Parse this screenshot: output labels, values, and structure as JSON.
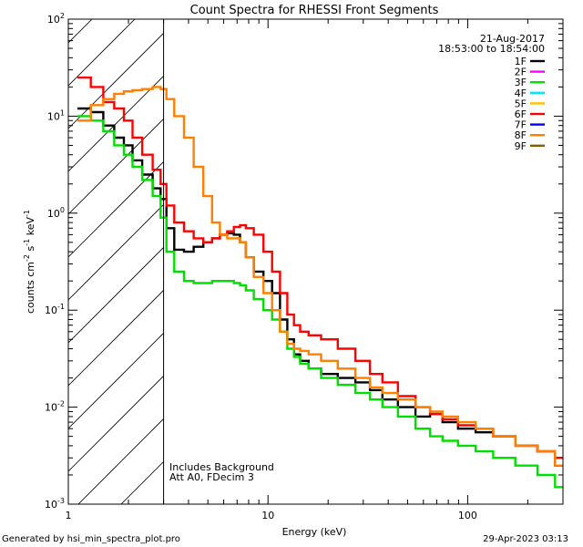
{
  "chart_data": {
    "type": "line",
    "title": "Count Spectra for RHESSI Front Segments",
    "xlabel": "Energy (keV)",
    "ylabel": {
      "base": "counts cm",
      "exp1": "-2",
      "mid1": " s",
      "exp2": "-1",
      "mid2": " keV",
      "exp3": "-1"
    },
    "x_scale": "log",
    "y_scale": "log",
    "xlim": [
      1,
      300
    ],
    "ylim": [
      0.001,
      100
    ],
    "x_ticks": [
      {
        "value": 1,
        "label": "1"
      },
      {
        "value": 10,
        "label": "10"
      },
      {
        "value": 100,
        "label": "100"
      }
    ],
    "y_ticks": [
      {
        "value": 0.001,
        "base": "10",
        "exp": "-3"
      },
      {
        "value": 0.01,
        "base": "10",
        "exp": "-2"
      },
      {
        "value": 0.1,
        "base": "10",
        "exp": "-1"
      },
      {
        "value": 1,
        "base": "10",
        "exp": "0"
      },
      {
        "value": 10,
        "base": "10",
        "exp": "1"
      },
      {
        "value": 100,
        "base": "10",
        "exp": "2"
      }
    ],
    "date_label": "21-Aug-2017",
    "time_label": "18:53:00 to 18:54:00",
    "hatched_region_end_kev": 3,
    "annotations": [
      "Includes Background",
      "Att A0, FDecim 3"
    ],
    "legend": [
      {
        "name": "1F",
        "color": "#000000"
      },
      {
        "name": "2F",
        "color": "#ff00ff"
      },
      {
        "name": "3F",
        "color": "#00e000"
      },
      {
        "name": "4F",
        "color": "#00e8ff"
      },
      {
        "name": "5F",
        "color": "#ffc000"
      },
      {
        "name": "6F",
        "color": "#ff0000"
      },
      {
        "name": "7F",
        "color": "#0000ff"
      },
      {
        "name": "8F",
        "color": "#ff8000"
      },
      {
        "name": "9F",
        "color": "#806000"
      }
    ],
    "series": [
      {
        "name": "1F",
        "color": "#000000",
        "x": [
          1.2,
          1.4,
          1.6,
          1.8,
          2.0,
          2.2,
          2.5,
          2.8,
          3.0,
          3.2,
          3.6,
          4.0,
          4.5,
          5.0,
          5.5,
          6.0,
          6.5,
          7.0,
          7.5,
          8.0,
          9.0,
          10,
          11,
          12,
          13,
          14,
          15,
          17,
          20,
          25,
          30,
          35,
          40,
          50,
          60,
          70,
          80,
          100,
          120,
          150,
          200,
          250,
          300
        ],
        "y": [
          12,
          11,
          8,
          6,
          5,
          3.5,
          2.5,
          1.8,
          1.4,
          0.7,
          0.42,
          0.4,
          0.45,
          0.5,
          0.55,
          0.6,
          0.62,
          0.6,
          0.5,
          0.35,
          0.25,
          0.2,
          0.15,
          0.08,
          0.05,
          0.035,
          0.03,
          0.025,
          0.022,
          0.02,
          0.018,
          0.015,
          0.012,
          0.01,
          0.008,
          0.0085,
          0.007,
          0.006,
          0.0055,
          0.005,
          0.004,
          0.0035,
          0.0025
        ]
      },
      {
        "name": "3F",
        "color": "#00e000",
        "x": [
          1.2,
          1.4,
          1.6,
          1.8,
          2.0,
          2.2,
          2.5,
          2.8,
          3.0,
          3.2,
          3.6,
          4.0,
          4.5,
          5.0,
          5.5,
          6.0,
          6.5,
          7.0,
          7.5,
          8.0,
          9.0,
          10,
          11,
          12,
          13,
          14,
          15,
          17,
          20,
          25,
          30,
          35,
          40,
          50,
          60,
          70,
          80,
          100,
          120,
          150,
          200,
          250,
          300
        ],
        "y": [
          10,
          9,
          7,
          5,
          4,
          3,
          2.2,
          1.5,
          0.9,
          0.4,
          0.25,
          0.2,
          0.19,
          0.19,
          0.2,
          0.2,
          0.2,
          0.19,
          0.18,
          0.16,
          0.13,
          0.1,
          0.08,
          0.06,
          0.04,
          0.033,
          0.028,
          0.025,
          0.02,
          0.017,
          0.014,
          0.012,
          0.01,
          0.008,
          0.006,
          0.005,
          0.0045,
          0.004,
          0.0035,
          0.003,
          0.0025,
          0.002,
          0.0015
        ]
      },
      {
        "name": "6F",
        "color": "#ff0000",
        "x": [
          1.2,
          1.4,
          1.6,
          1.8,
          2.0,
          2.2,
          2.5,
          2.8,
          3.0,
          3.2,
          3.6,
          4.0,
          4.5,
          5.0,
          5.5,
          6.0,
          6.5,
          7.0,
          7.5,
          8.0,
          9.0,
          10,
          11,
          12,
          13,
          14,
          15,
          17,
          20,
          25,
          30,
          35,
          40,
          50,
          60,
          70,
          80,
          100,
          120,
          150,
          200,
          250,
          300
        ],
        "y": [
          25,
          20,
          14,
          12,
          9,
          6,
          4,
          2.8,
          2,
          1.2,
          0.8,
          0.65,
          0.55,
          0.5,
          0.55,
          0.6,
          0.65,
          0.72,
          0.75,
          0.7,
          0.6,
          0.4,
          0.25,
          0.15,
          0.09,
          0.07,
          0.06,
          0.055,
          0.05,
          0.04,
          0.03,
          0.022,
          0.018,
          0.013,
          0.01,
          0.0085,
          0.0075,
          0.0065,
          0.006,
          0.005,
          0.004,
          0.0035,
          0.003
        ]
      },
      {
        "name": "8F",
        "color": "#ff8000",
        "x": [
          1.2,
          1.4,
          1.6,
          1.8,
          2.0,
          2.2,
          2.5,
          2.8,
          3.0,
          3.2,
          3.6,
          4.0,
          4.5,
          5.0,
          5.5,
          6.0,
          6.5,
          7.0,
          7.5,
          8.0,
          9.0,
          10,
          11,
          12,
          13,
          14,
          15,
          17,
          20,
          25,
          30,
          35,
          40,
          50,
          60,
          70,
          80,
          100,
          120,
          150,
          200,
          250,
          300
        ],
        "y": [
          9,
          13,
          15,
          17,
          18,
          18.5,
          19,
          20,
          19,
          15,
          10,
          6,
          3,
          1.5,
          0.8,
          0.6,
          0.55,
          0.55,
          0.5,
          0.35,
          0.22,
          0.15,
          0.1,
          0.06,
          0.045,
          0.04,
          0.038,
          0.035,
          0.03,
          0.025,
          0.02,
          0.016,
          0.014,
          0.012,
          0.01,
          0.009,
          0.008,
          0.007,
          0.006,
          0.005,
          0.004,
          0.0035,
          0.0025
        ]
      }
    ]
  },
  "footer": {
    "left": "Generated by hsi_min_spectra_plot.pro",
    "right": "29-Apr-2023 03:13"
  }
}
